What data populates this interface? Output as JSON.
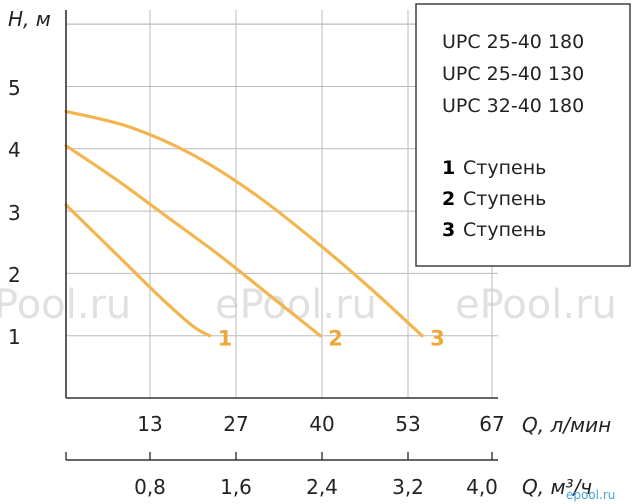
{
  "chart_data": {
    "type": "line",
    "ylabel": "H, м",
    "xlabel": "Q, л/мин",
    "xlabel2": "Q, м³/ч",
    "y_ticks": [
      "1",
      "2",
      "3",
      "4",
      "5"
    ],
    "x_ticks": [
      "13",
      "27",
      "40",
      "53",
      "67"
    ],
    "x2_ticks": [
      "0,8",
      "1,6",
      "2,4",
      "3,2",
      "4,0"
    ],
    "xlim": [
      0,
      67
    ],
    "ylim": [
      0,
      6
    ],
    "grid": true,
    "legend_position": "top-right",
    "colors": {
      "curve": "#f2b550",
      "label": "#eda83a",
      "grid": "#bbbbbb",
      "axis": "#333333"
    },
    "series": [
      {
        "name": "1",
        "x": [
          0,
          5,
          10,
          15,
          20,
          22.6
        ],
        "y": [
          3.1,
          2.6,
          2.1,
          1.6,
          1.15,
          1.0
        ]
      },
      {
        "name": "2",
        "x": [
          0,
          8,
          16,
          24,
          32,
          40
        ],
        "y": [
          4.05,
          3.5,
          2.9,
          2.3,
          1.65,
          1.0
        ]
      },
      {
        "name": "3",
        "x": [
          0,
          10,
          20,
          30,
          40,
          48,
          56
        ],
        "y": [
          4.6,
          4.35,
          3.9,
          3.25,
          2.45,
          1.75,
          1.0
        ]
      }
    ]
  },
  "legend": {
    "models": [
      "UPC 25-40 180",
      "UPC 25-40 130",
      "UPC 32-40 180"
    ],
    "stages": [
      {
        "num": "1",
        "text": "Ступень"
      },
      {
        "num": "2",
        "text": "Ступень"
      },
      {
        "num": "3",
        "text": "Ступень"
      }
    ]
  },
  "watermarks": [
    "Pool.ru",
    "ePool.ru",
    "ePool.ru"
  ],
  "watermark_small": "epool.ru"
}
